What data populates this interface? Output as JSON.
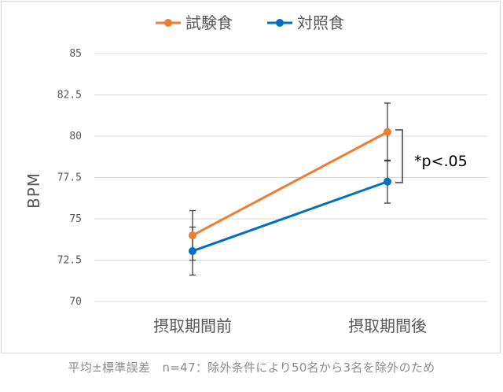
{
  "chart_data": {
    "type": "line",
    "categories": [
      "摂取期間前",
      "摂取期間後"
    ],
    "series": [
      {
        "name": "試験食",
        "color": "#ed7d31",
        "values": [
          74.0,
          80.25
        ],
        "error": [
          1.5,
          1.75
        ]
      },
      {
        "name": "対照食",
        "color": "#0070c0",
        "values": [
          73.05,
          77.25
        ],
        "error": [
          1.45,
          1.3
        ]
      }
    ],
    "ylabel": "BPM",
    "ylim": [
      70,
      85
    ],
    "yticks": [
      "70",
      "72.5",
      "75",
      "77.5",
      "80",
      "82.5",
      "85"
    ],
    "grid": true,
    "legend": "top-center",
    "annotation": "*p<.05"
  },
  "footnote": "平均±標準誤差　n=47：除外条件により50名から3名を除外のため"
}
